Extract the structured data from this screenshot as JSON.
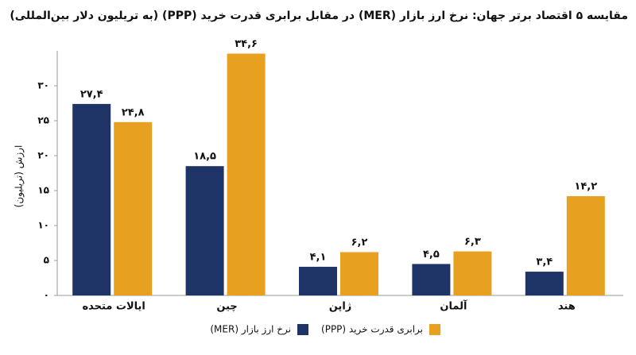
{
  "chart_data": {
    "type": "bar",
    "title": "مقایسه ۵ اقتصاد برتر جهان: نرخ ارز بازار (MER) در مقابل برابری قدرت خرید (PPP) (به تریلیون دلار بین‌المللی)",
    "y_label": "ارزش (تریلیون)",
    "categories": [
      "ایالات متحده",
      "چین",
      "ژاپن",
      "آلمان",
      "هند"
    ],
    "series": [
      {
        "name": "نرخ ارز بازار (MER)",
        "color": "#1f3466",
        "values": [
          27.4,
          18.5,
          4.1,
          4.5,
          3.4
        ],
        "value_labels": [
          "۲۷,۴",
          "۱۸,۵",
          "۴,۱",
          "۴,۵",
          "۳,۴"
        ]
      },
      {
        "name": "برابری قدرت خرید (PPP)",
        "color": "#e8a020",
        "values": [
          24.8,
          34.6,
          6.2,
          6.3,
          14.2
        ],
        "value_labels": [
          "۲۴,۸",
          "۳۴,۶",
          "۶,۲",
          "۶,۳",
          "۱۴,۲"
        ]
      }
    ],
    "ylim": [
      0,
      35
    ],
    "yticks": [
      {
        "value": 0,
        "label": "۰"
      },
      {
        "value": 5,
        "label": "۵"
      },
      {
        "value": 10,
        "label": "۱۰"
      },
      {
        "value": 15,
        "label": "۱۵"
      },
      {
        "value": 20,
        "label": "۲۰"
      },
      {
        "value": 25,
        "label": "۲۵"
      },
      {
        "value": 30,
        "label": "۳۰"
      }
    ],
    "legend": "bottom"
  }
}
